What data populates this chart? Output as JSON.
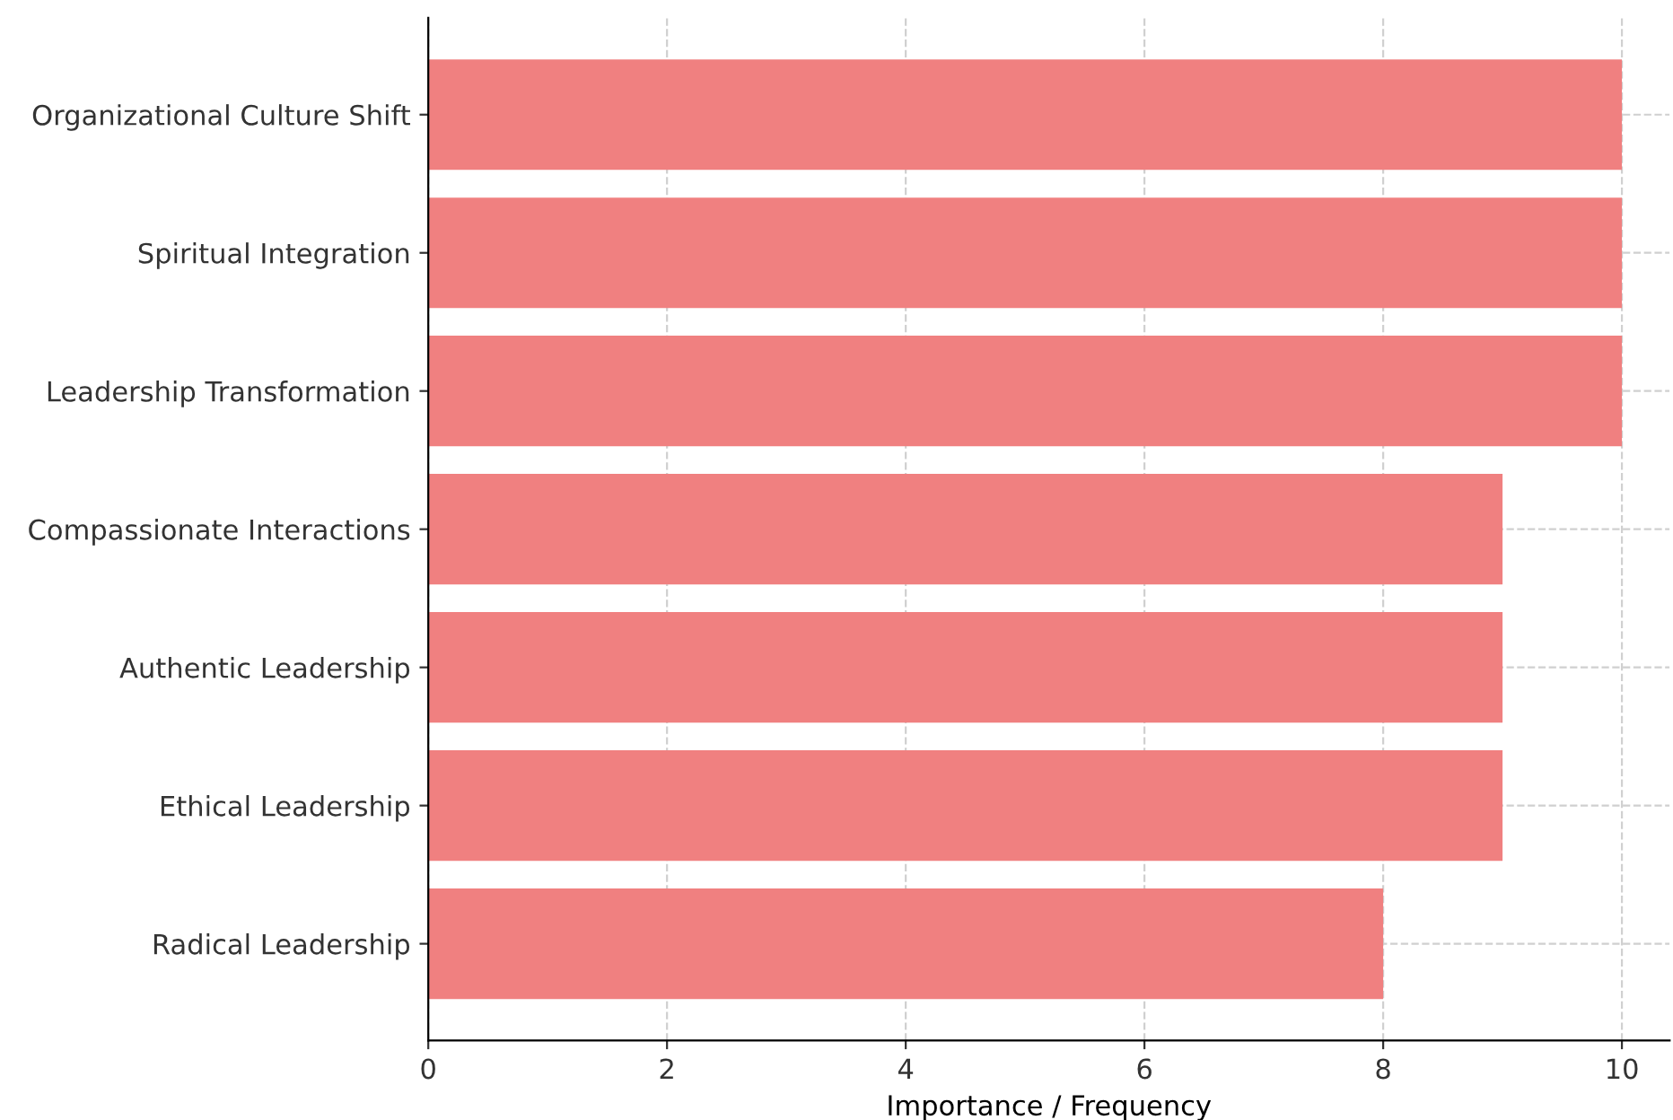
{
  "chart_data": {
    "type": "bar",
    "orientation": "horizontal",
    "xlabel": "Importance / Frequency",
    "categories": [
      "Organizational Culture Shift",
      "Spiritual Integration",
      "Leadership Transformation",
      "Compassionate Interactions",
      "Authentic Leadership",
      "Ethical Leadership",
      "Radical Leadership"
    ],
    "values": [
      10,
      10,
      10,
      9,
      9,
      9,
      8
    ],
    "color": "#f08080",
    "xlim": [
      0,
      10.4
    ],
    "xticks": [
      0,
      2,
      4,
      6,
      8,
      10
    ],
    "grid": true,
    "line_style": "dashed"
  }
}
